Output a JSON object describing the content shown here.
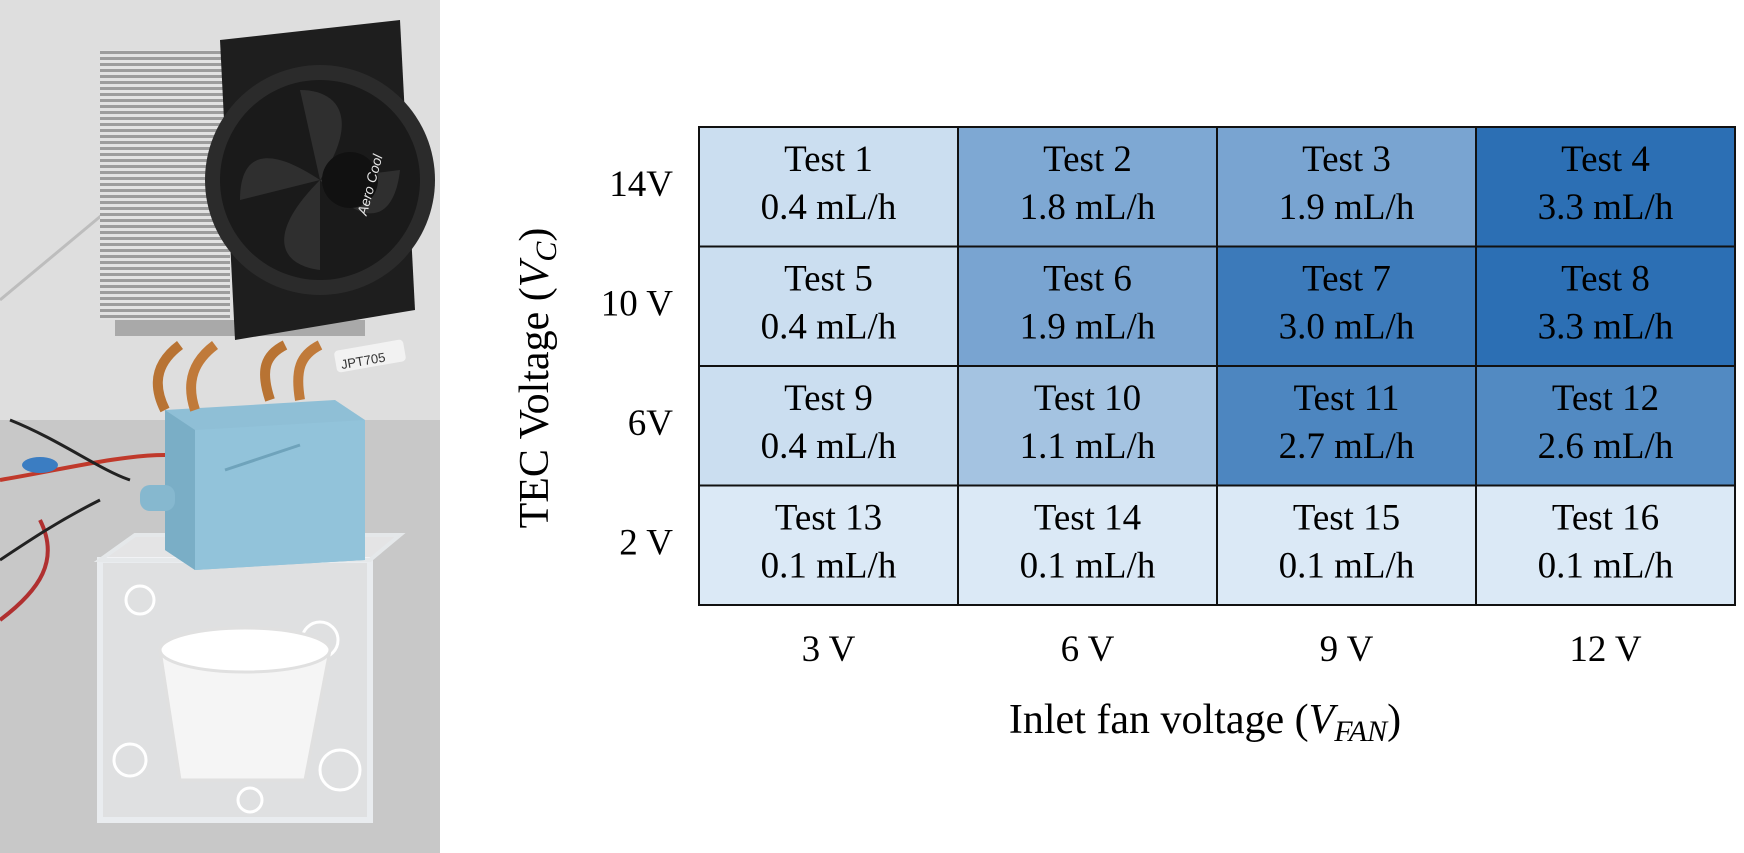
{
  "chart_data": {
    "type": "heatmap",
    "title": "",
    "xlabel": "Inlet fan voltage",
    "xlabel_symbol": "V",
    "xlabel_symbol_sub": "FAN",
    "ylabel": "TEC Voltage",
    "ylabel_symbol": "V",
    "ylabel_symbol_sub": "C",
    "x_categories": [
      "3 V",
      "6 V",
      "9 V",
      "12 V"
    ],
    "y_categories": [
      "14V",
      "10 V",
      "6V",
      "2 V"
    ],
    "value_unit": "mL/h",
    "color_low": "#dbe9f6",
    "color_high": "#2c6fb4",
    "cells": [
      [
        {
          "label": "Test 1",
          "value": 0.4,
          "text": "0.4 mL/h"
        },
        {
          "label": "Test 2",
          "value": 1.8,
          "text": "1.8 mL/h"
        },
        {
          "label": "Test 3",
          "value": 1.9,
          "text": "1.9 mL/h"
        },
        {
          "label": "Test 4",
          "value": 3.3,
          "text": "3.3 mL/h"
        }
      ],
      [
        {
          "label": "Test 5",
          "value": 0.4,
          "text": "0.4 mL/h"
        },
        {
          "label": "Test 6",
          "value": 1.9,
          "text": "1.9 mL/h"
        },
        {
          "label": "Test 7",
          "value": 3.0,
          "text": "3.0 mL/h"
        },
        {
          "label": "Test 8",
          "value": 3.3,
          "text": "3.3 mL/h"
        }
      ],
      [
        {
          "label": "Test 9",
          "value": 0.4,
          "text": "0.4 mL/h"
        },
        {
          "label": "Test 10",
          "value": 1.1,
          "text": "1.1 mL/h"
        },
        {
          "label": "Test 11",
          "value": 2.7,
          "text": "2.7 mL/h"
        },
        {
          "label": "Test 12",
          "value": 2.6,
          "text": "2.6 mL/h"
        }
      ],
      [
        {
          "label": "Test 13",
          "value": 0.1,
          "text": "0.1 mL/h"
        },
        {
          "label": "Test 14",
          "value": 0.1,
          "text": "0.1 mL/h"
        },
        {
          "label": "Test 15",
          "value": 0.1,
          "text": "0.1 mL/h"
        },
        {
          "label": "Test 16",
          "value": 0.1,
          "text": "0.1 mL/h"
        }
      ]
    ]
  },
  "photo": {
    "icon": "device-photo",
    "fan_logo_text": "Aero Cool",
    "sticker_text": "JPT705",
    "colors": {
      "box": "#8fbfd6",
      "fan": "#1f1f1f",
      "heatsink": "#c8c8c8",
      "wall": "#d9d9d9",
      "floor": "#c9c9c9"
    }
  }
}
